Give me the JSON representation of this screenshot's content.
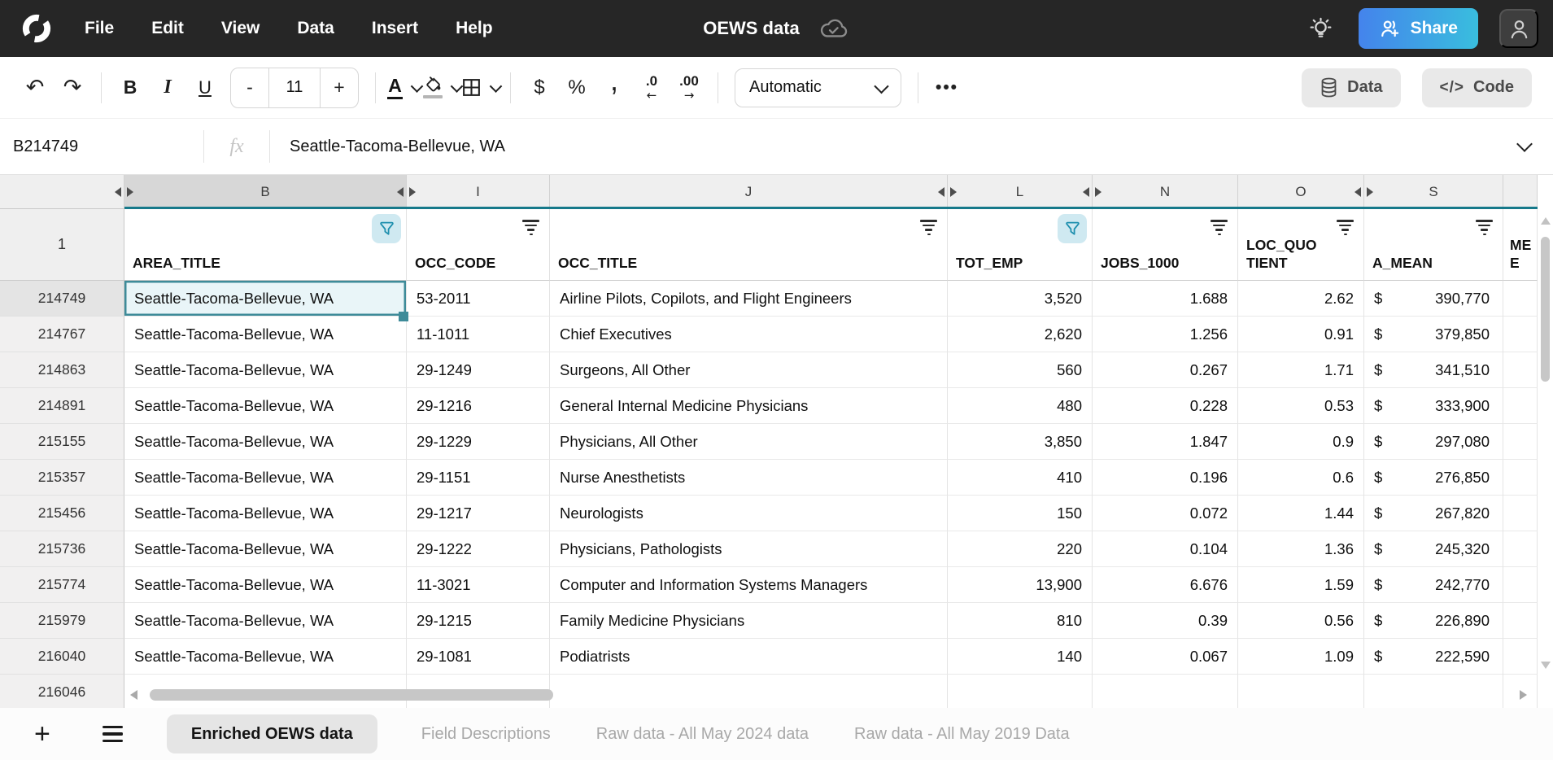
{
  "topbar": {
    "menu": [
      "File",
      "Edit",
      "View",
      "Data",
      "Insert",
      "Help"
    ],
    "title": "OEWS data",
    "share_label": "Share"
  },
  "toolbar": {
    "bold": "B",
    "italic": "I",
    "underline": "U",
    "minus": "-",
    "size": "11",
    "plus": "+",
    "color_letter": "A",
    "currency": "$",
    "percent": "%",
    "comma": ",",
    "dec0": ".0",
    "dec0_arrow": "←",
    "dec00": ".00",
    "dec00_arrow": "→",
    "format": "Automatic",
    "more": "•••",
    "data_label": "Data",
    "code_label": "Code",
    "code_glyph": "</>",
    "undo_glyph": "↶",
    "redo_glyph": "↷"
  },
  "formula_bar": {
    "cell_ref": "B214749",
    "fx": "fx",
    "value": "Seattle-Tacoma-Bellevue, WA"
  },
  "grid": {
    "letters": {
      "b": "B",
      "i": "I",
      "j": "J",
      "l": "L",
      "n": "N",
      "o": "O",
      "s": "S"
    },
    "header_row_number": "1",
    "headers": {
      "area": "AREA_TITLE",
      "occ_code": "OCC_CODE",
      "occ_title": "OCC_TITLE",
      "tot_emp": "TOT_EMP",
      "jobs_1000": "JOBS_1000",
      "loc_quotient": "LOC_QUOTIENT",
      "a_mean": "A_MEAN",
      "clipped": "ME E"
    },
    "currency_symbol": "$",
    "selected_cell": "B214749",
    "rows": [
      {
        "row": "214749",
        "area": "Seattle-Tacoma-Bellevue, WA",
        "occ_code": "53-2011",
        "occ_title": "Airline Pilots, Copilots, and Flight Engineers",
        "tot_emp": "3,520",
        "jobs_1000": "1.688",
        "loc_quotient": "2.62",
        "a_mean": "390,770"
      },
      {
        "row": "214767",
        "area": "Seattle-Tacoma-Bellevue, WA",
        "occ_code": "11-1011",
        "occ_title": "Chief Executives",
        "tot_emp": "2,620",
        "jobs_1000": "1.256",
        "loc_quotient": "0.91",
        "a_mean": "379,850"
      },
      {
        "row": "214863",
        "area": "Seattle-Tacoma-Bellevue, WA",
        "occ_code": "29-1249",
        "occ_title": "Surgeons, All Other",
        "tot_emp": "560",
        "jobs_1000": "0.267",
        "loc_quotient": "1.71",
        "a_mean": "341,510"
      },
      {
        "row": "214891",
        "area": "Seattle-Tacoma-Bellevue, WA",
        "occ_code": "29-1216",
        "occ_title": "General Internal Medicine Physicians",
        "tot_emp": "480",
        "jobs_1000": "0.228",
        "loc_quotient": "0.53",
        "a_mean": "333,900"
      },
      {
        "row": "215155",
        "area": "Seattle-Tacoma-Bellevue, WA",
        "occ_code": "29-1229",
        "occ_title": "Physicians, All Other",
        "tot_emp": "3,850",
        "jobs_1000": "1.847",
        "loc_quotient": "0.9",
        "a_mean": "297,080"
      },
      {
        "row": "215357",
        "area": "Seattle-Tacoma-Bellevue, WA",
        "occ_code": "29-1151",
        "occ_title": "Nurse Anesthetists",
        "tot_emp": "410",
        "jobs_1000": "0.196",
        "loc_quotient": "0.6",
        "a_mean": "276,850"
      },
      {
        "row": "215456",
        "area": "Seattle-Tacoma-Bellevue, WA",
        "occ_code": "29-1217",
        "occ_title": "Neurologists",
        "tot_emp": "150",
        "jobs_1000": "0.072",
        "loc_quotient": "1.44",
        "a_mean": "267,820"
      },
      {
        "row": "215736",
        "area": "Seattle-Tacoma-Bellevue, WA",
        "occ_code": "29-1222",
        "occ_title": "Physicians, Pathologists",
        "tot_emp": "220",
        "jobs_1000": "0.104",
        "loc_quotient": "1.36",
        "a_mean": "245,320"
      },
      {
        "row": "215774",
        "area": "Seattle-Tacoma-Bellevue, WA",
        "occ_code": "11-3021",
        "occ_title": "Computer and Information Systems Managers",
        "tot_emp": "13,900",
        "jobs_1000": "6.676",
        "loc_quotient": "1.59",
        "a_mean": "242,770"
      },
      {
        "row": "215979",
        "area": "Seattle-Tacoma-Bellevue, WA",
        "occ_code": "29-1215",
        "occ_title": "Family Medicine Physicians",
        "tot_emp": "810",
        "jobs_1000": "0.39",
        "loc_quotient": "0.56",
        "a_mean": "226,890"
      },
      {
        "row": "216040",
        "area": "Seattle-Tacoma-Bellevue, WA",
        "occ_code": "29-1081",
        "occ_title": "Podiatrists",
        "tot_emp": "140",
        "jobs_1000": "0.067",
        "loc_quotient": "1.09",
        "a_mean": "222,590"
      }
    ],
    "partial_row_number": "216046"
  },
  "tabsbar": {
    "add_label": "+",
    "active_tab": "Enriched OEWS data",
    "tabs": [
      "Field Descriptions",
      "Raw data - All May 2024 data",
      "Raw data - All May 2019 Data"
    ]
  }
}
